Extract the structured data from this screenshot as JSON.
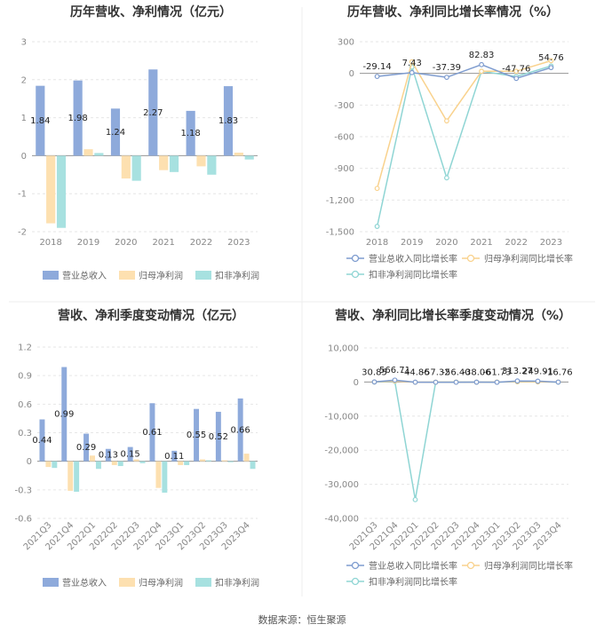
{
  "colors": {
    "revenue": "#8eaadb",
    "net": "#fde0b0",
    "deducted": "#a7e1e0",
    "revenue_line": "#7e9ccf",
    "net_line": "#f9d28d",
    "deducted_line": "#8fd5d4"
  },
  "source": "数据来源：恒生聚源",
  "chart_data": [
    {
      "type": "bar",
      "title": "历年营收、净利情况（亿元）",
      "categories": [
        "2018",
        "2019",
        "2020",
        "2021",
        "2022",
        "2023"
      ],
      "ylim": [
        -2,
        3
      ],
      "yticks": [
        "-2",
        "-1",
        "0",
        "1",
        "2",
        "3"
      ],
      "series": [
        {
          "name": "营业总收入",
          "values": [
            1.84,
            1.98,
            1.24,
            2.27,
            1.18,
            1.83
          ],
          "labels": [
            "1.84",
            "1.98",
            "1.24",
            "2.27",
            "1.18",
            "1.83"
          ]
        },
        {
          "name": "归母净利润",
          "values": [
            -1.78,
            0.17,
            -0.6,
            -0.38,
            -0.28,
            0.08
          ]
        },
        {
          "name": "扣非净利润",
          "values": [
            -1.9,
            0.07,
            -0.66,
            -0.43,
            -0.5,
            -0.1
          ]
        }
      ],
      "grid": true,
      "legend": "bottom"
    },
    {
      "type": "line",
      "title": "历年营收、净利同比增长率情况（%）",
      "categories": [
        "2018",
        "2019",
        "2020",
        "2021",
        "2022",
        "2023"
      ],
      "ylim": [
        -1500,
        300
      ],
      "yticks": [
        "-1,500",
        "-1,200",
        "-900",
        "-600",
        "-300",
        "0",
        "300"
      ],
      "series": [
        {
          "name": "营业总收入同比增长率",
          "values": [
            -29.14,
            7.43,
            -37.39,
            82.83,
            -47.76,
            54.76
          ],
          "labels": [
            "-29.14",
            "7.43",
            "-37.39",
            "82.83",
            "-47.76",
            "54.76"
          ]
        },
        {
          "name": "归母净利润同比增长率",
          "values": [
            -1090,
            110,
            -450,
            20,
            20,
            120
          ]
        },
        {
          "name": "扣非净利润同比增长率",
          "values": [
            -1450,
            60,
            -990,
            20,
            -30,
            70
          ]
        }
      ],
      "grid": true,
      "legend": "bottom"
    },
    {
      "type": "bar",
      "title": "营收、净利季度变动情况（亿元）",
      "categories": [
        "2021Q3",
        "2021Q4",
        "2022Q1",
        "2022Q2",
        "2022Q3",
        "2022Q4",
        "2023Q1",
        "2023Q2",
        "2023Q3",
        "2023Q4"
      ],
      "ylim": [
        -0.6,
        1.2
      ],
      "yticks": [
        "-0.6",
        "-0.3",
        "0",
        "0.3",
        "0.6",
        "0.9",
        "1.2"
      ],
      "series": [
        {
          "name": "营业总收入",
          "values": [
            0.44,
            0.99,
            0.29,
            0.13,
            0.15,
            0.61,
            0.11,
            0.55,
            0.52,
            0.66
          ],
          "labels": [
            "0.44",
            "0.99",
            "0.29",
            "0.13",
            "0.15",
            "0.61",
            "0.11",
            "0.55",
            "0.52",
            "0.66"
          ]
        },
        {
          "name": "归母净利润",
          "values": [
            -0.06,
            -0.31,
            0.06,
            -0.04,
            0.02,
            -0.28,
            -0.04,
            0.02,
            0.01,
            0.08
          ]
        },
        {
          "name": "扣非净利润",
          "values": [
            -0.07,
            -0.32,
            -0.08,
            -0.05,
            -0.02,
            -0.33,
            -0.04,
            0.01,
            -0.01,
            -0.08
          ]
        }
      ],
      "grid": true,
      "legend": "bottom"
    },
    {
      "type": "line",
      "title": "营收、净利同比增长率季度变动情况（%）",
      "categories": [
        "2021Q3",
        "2021Q4",
        "2022Q1",
        "2022Q2",
        "2022Q3",
        "2022Q4",
        "2023Q1",
        "2023Q2",
        "2023Q3",
        "2023Q4"
      ],
      "ylim": [
        -40000,
        10000
      ],
      "yticks": [
        "-40,000",
        "-30,000",
        "-20,000",
        "-10,000",
        "0",
        "10,000"
      ],
      "series": [
        {
          "name": "营业总收入同比增长率",
          "values": [
            30.85,
            566.71,
            -44.86,
            -57.32,
            -56.4,
            -38.06,
            -61.73,
            313.27,
            249.91,
            -16.76
          ],
          "labels": [
            "30.85",
            "566.71",
            "-44.86",
            "-57.32",
            "-56.40",
            "-38.06",
            "-61.73",
            "313.27",
            "249.91",
            "-16.76"
          ]
        },
        {
          "name": "归母净利润同比增长率",
          "values": [
            20,
            300,
            -60,
            -30,
            -20,
            -40,
            -10,
            100,
            50,
            10
          ]
        },
        {
          "name": "扣非净利润同比增长率",
          "values": [
            10,
            200,
            -34500,
            -50,
            -20,
            -60,
            -20,
            80,
            40,
            -20
          ]
        }
      ],
      "grid": true,
      "legend": "bottom"
    }
  ]
}
